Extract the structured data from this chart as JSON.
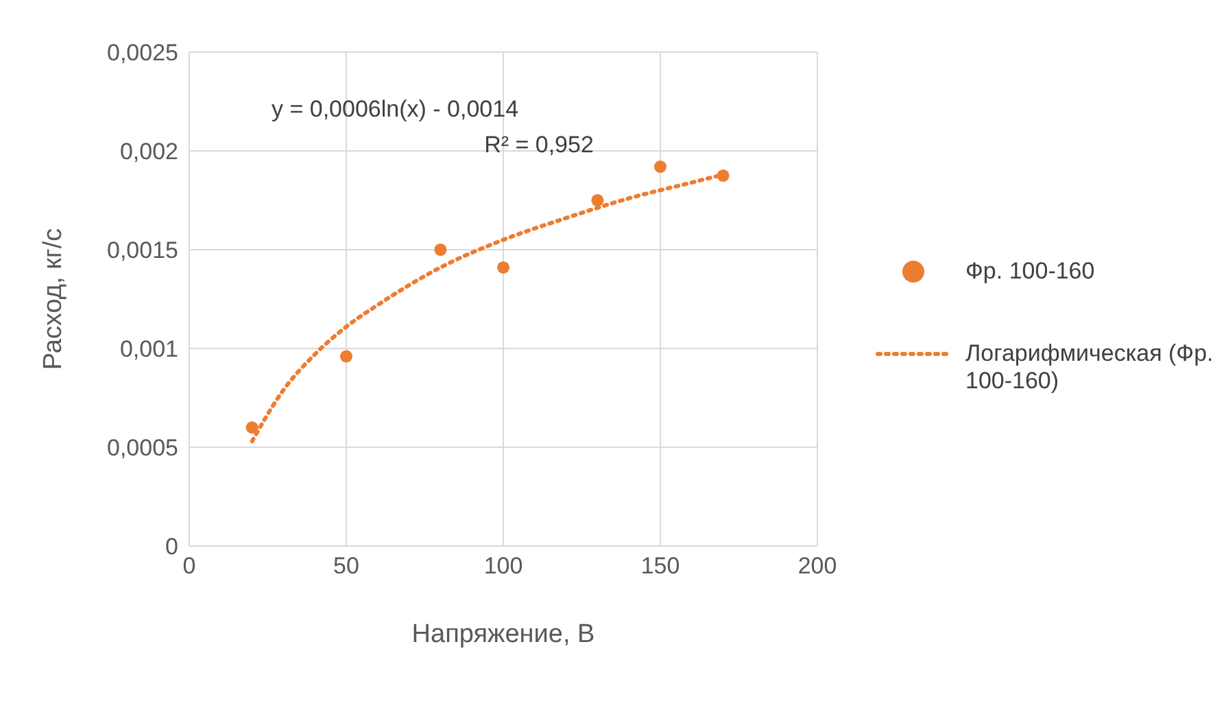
{
  "chart_data": {
    "type": "scatter",
    "xlabel": "Напряжение, В",
    "ylabel": "Расход, кг/с",
    "xlim": [
      0,
      200
    ],
    "xticks": [
      0,
      50,
      100,
      150,
      200
    ],
    "ylim": [
      0,
      0.0025
    ],
    "yticks": [
      {
        "value": 0,
        "label": "0"
      },
      {
        "value": 0.0005,
        "label": "0,0005"
      },
      {
        "value": 0.001,
        "label": "0,001"
      },
      {
        "value": 0.0015,
        "label": "0,0015"
      },
      {
        "value": 0.002,
        "label": "0,002"
      },
      {
        "value": 0.0025,
        "label": "0,0025"
      }
    ],
    "grid": true,
    "legend": "right",
    "marker": "circle",
    "annotations": [
      "y = 0,0006ln(x) - 0,0014",
      "R² = 0,952"
    ],
    "series": [
      {
        "name": "Фр. 100-160",
        "color": "#ed7d31",
        "x": [
          20,
          50,
          80,
          100,
          130,
          150,
          170
        ],
        "values": [
          0.0006,
          0.00096,
          0.0015,
          0.00141,
          0.00175,
          0.00192,
          0.001875
        ]
      },
      {
        "name": "Логарифмическая (Фр. 100-160)",
        "type": "line",
        "line_style": "dotted",
        "marker": "none",
        "color": "#ed7d31",
        "x": [
          20,
          30,
          40,
          50,
          60,
          80,
          100,
          120,
          140,
          160,
          170
        ],
        "values": [
          0.00053,
          0.00079,
          0.00097,
          0.00111,
          0.00122,
          0.00141,
          0.00155,
          0.00166,
          0.00176,
          0.00184,
          0.00188
        ]
      }
    ]
  }
}
